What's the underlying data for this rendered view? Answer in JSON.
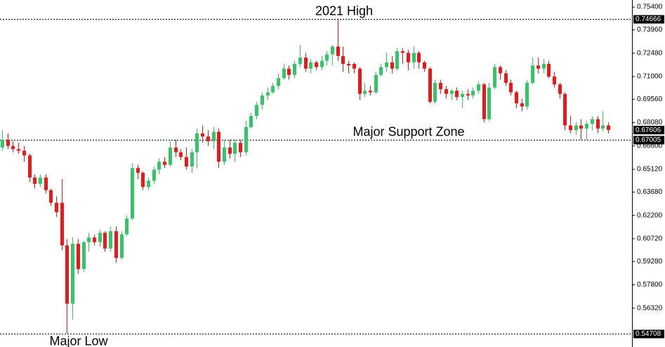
{
  "chart_data": {
    "type": "candlestick",
    "up_color": "#35c46a",
    "down_color": "#e8191a",
    "ylim": [
      0.5386,
      0.7585
    ],
    "yticks": [
      {
        "value": 0.754,
        "label": "0.75400"
      },
      {
        "value": 0.7396,
        "label": "0.73960"
      },
      {
        "value": 0.7248,
        "label": "0.72480"
      },
      {
        "value": 0.71,
        "label": "0.71000"
      },
      {
        "value": 0.6956,
        "label": "0.69560"
      },
      {
        "value": 0.6808,
        "label": "0.68080"
      },
      {
        "value": 0.666,
        "label": "0.66600"
      },
      {
        "value": 0.6512,
        "label": "0.65120"
      },
      {
        "value": 0.6368,
        "label": "0.63680"
      },
      {
        "value": 0.622,
        "label": "0.62200"
      },
      {
        "value": 0.6072,
        "label": "0.60720"
      },
      {
        "value": 0.5928,
        "label": "0.59280"
      },
      {
        "value": 0.578,
        "label": "0.57800"
      },
      {
        "value": 0.5632,
        "label": "0.56320"
      }
    ],
    "levels": [
      {
        "value": 0.74666,
        "label": "0.74666",
        "note": "2021 High"
      },
      {
        "value": 0.67005,
        "label": "0.67005",
        "note": "Major Support Zone"
      },
      {
        "value": 0.54708,
        "label": "0.54708",
        "note": "Major Low"
      }
    ],
    "current_price": {
      "value": 0.67606,
      "label": "0.67606"
    },
    "ohlc": [
      [
        0.665,
        0.676,
        0.663,
        0.67
      ],
      [
        0.67,
        0.674,
        0.664,
        0.666
      ],
      [
        0.666,
        0.669,
        0.662,
        0.664
      ],
      [
        0.664,
        0.668,
        0.661,
        0.663
      ],
      [
        0.663,
        0.666,
        0.656,
        0.66
      ],
      [
        0.66,
        0.661,
        0.643,
        0.646
      ],
      [
        0.646,
        0.648,
        0.639,
        0.642
      ],
      [
        0.642,
        0.648,
        0.64,
        0.646
      ],
      [
        0.646,
        0.648,
        0.636,
        0.638
      ],
      [
        0.638,
        0.639,
        0.628,
        0.63
      ],
      [
        0.63,
        0.634,
        0.621,
        0.624
      ],
      [
        0.63,
        0.645,
        0.6,
        0.603
      ],
      [
        0.603,
        0.607,
        0.5471,
        0.566
      ],
      [
        0.566,
        0.608,
        0.556,
        0.604
      ],
      [
        0.604,
        0.607,
        0.585,
        0.588
      ],
      [
        0.588,
        0.606,
        0.586,
        0.605
      ],
      [
        0.605,
        0.611,
        0.599,
        0.608
      ],
      [
        0.608,
        0.61,
        0.603,
        0.605
      ],
      [
        0.605,
        0.613,
        0.602,
        0.611
      ],
      [
        0.611,
        0.612,
        0.599,
        0.601
      ],
      [
        0.601,
        0.615,
        0.599,
        0.612
      ],
      [
        0.612,
        0.615,
        0.592,
        0.595
      ],
      [
        0.595,
        0.612,
        0.594,
        0.61
      ],
      [
        0.61,
        0.622,
        0.609,
        0.62
      ],
      [
        0.62,
        0.655,
        0.619,
        0.652
      ],
      [
        0.652,
        0.654,
        0.645,
        0.649
      ],
      [
        0.649,
        0.65,
        0.638,
        0.64
      ],
      [
        0.64,
        0.646,
        0.638,
        0.644
      ],
      [
        0.644,
        0.653,
        0.642,
        0.651
      ],
      [
        0.651,
        0.658,
        0.648,
        0.656
      ],
      [
        0.656,
        0.659,
        0.652,
        0.654
      ],
      [
        0.654,
        0.669,
        0.653,
        0.665
      ],
      [
        0.665,
        0.67,
        0.659,
        0.662
      ],
      [
        0.662,
        0.664,
        0.657,
        0.659
      ],
      [
        0.659,
        0.665,
        0.651,
        0.653
      ],
      [
        0.653,
        0.664,
        0.649,
        0.662
      ],
      [
        0.662,
        0.677,
        0.652,
        0.674
      ],
      [
        0.674,
        0.679,
        0.668,
        0.672
      ],
      [
        0.672,
        0.676,
        0.666,
        0.669
      ],
      [
        0.669,
        0.678,
        0.664,
        0.675
      ],
      [
        0.675,
        0.677,
        0.652,
        0.656
      ],
      [
        0.656,
        0.67,
        0.654,
        0.665
      ],
      [
        0.665,
        0.67,
        0.658,
        0.661
      ],
      [
        0.661,
        0.67,
        0.656,
        0.668
      ],
      [
        0.668,
        0.67,
        0.659,
        0.662
      ],
      [
        0.662,
        0.682,
        0.66,
        0.678
      ],
      [
        0.678,
        0.687,
        0.677,
        0.685
      ],
      [
        0.685,
        0.694,
        0.683,
        0.692
      ],
      [
        0.692,
        0.7,
        0.689,
        0.698
      ],
      [
        0.698,
        0.703,
        0.695,
        0.7
      ],
      [
        0.7,
        0.706,
        0.699,
        0.704
      ],
      [
        0.704,
        0.712,
        0.702,
        0.709
      ],
      [
        0.709,
        0.718,
        0.708,
        0.715
      ],
      [
        0.715,
        0.717,
        0.708,
        0.711
      ],
      [
        0.711,
        0.72,
        0.709,
        0.718
      ],
      [
        0.718,
        0.73,
        0.716,
        0.722
      ],
      [
        0.722,
        0.725,
        0.713,
        0.715
      ],
      [
        0.715,
        0.721,
        0.712,
        0.719
      ],
      [
        0.719,
        0.72,
        0.714,
        0.716
      ],
      [
        0.716,
        0.723,
        0.714,
        0.72
      ],
      [
        0.72,
        0.726,
        0.717,
        0.724
      ],
      [
        0.724,
        0.73,
        0.717,
        0.729
      ],
      [
        0.729,
        0.7467,
        0.72,
        0.723
      ],
      [
        0.723,
        0.729,
        0.713,
        0.718
      ],
      [
        0.718,
        0.72,
        0.712,
        0.717
      ],
      [
        0.718,
        0.719,
        0.712,
        0.715
      ],
      [
        0.715,
        0.716,
        0.695,
        0.699
      ],
      [
        0.699,
        0.706,
        0.697,
        0.701
      ],
      [
        0.701,
        0.704,
        0.698,
        0.7
      ],
      [
        0.7,
        0.713,
        0.699,
        0.711
      ],
      [
        0.711,
        0.718,
        0.71,
        0.716
      ],
      [
        0.716,
        0.725,
        0.713,
        0.719
      ],
      [
        0.719,
        0.723,
        0.712,
        0.715
      ],
      [
        0.715,
        0.728,
        0.714,
        0.726
      ],
      [
        0.726,
        0.728,
        0.718,
        0.725
      ],
      [
        0.725,
        0.727,
        0.714,
        0.719
      ],
      [
        0.719,
        0.729,
        0.715,
        0.725
      ],
      [
        0.725,
        0.726,
        0.715,
        0.719
      ],
      [
        0.719,
        0.72,
        0.713,
        0.715
      ],
      [
        0.715,
        0.716,
        0.693,
        0.694
      ],
      [
        0.694,
        0.708,
        0.693,
        0.706
      ],
      [
        0.706,
        0.708,
        0.699,
        0.702
      ],
      [
        0.702,
        0.704,
        0.696,
        0.699
      ],
      [
        0.699,
        0.702,
        0.695,
        0.701
      ],
      [
        0.701,
        0.703,
        0.695,
        0.697
      ],
      [
        0.697,
        0.701,
        0.69,
        0.699
      ],
      [
        0.699,
        0.702,
        0.695,
        0.698
      ],
      [
        0.698,
        0.703,
        0.696,
        0.701
      ],
      [
        0.701,
        0.707,
        0.699,
        0.705
      ],
      [
        0.705,
        0.706,
        0.681,
        0.683
      ],
      [
        0.683,
        0.706,
        0.682,
        0.703
      ],
      [
        0.703,
        0.718,
        0.702,
        0.716
      ],
      [
        0.716,
        0.717,
        0.708,
        0.712
      ],
      [
        0.712,
        0.714,
        0.704,
        0.706
      ],
      [
        0.706,
        0.708,
        0.698,
        0.7
      ],
      [
        0.7,
        0.701,
        0.69,
        0.693
      ],
      [
        0.693,
        0.696,
        0.688,
        0.691
      ],
      [
        0.691,
        0.708,
        0.689,
        0.706
      ],
      [
        0.706,
        0.722,
        0.705,
        0.717
      ],
      [
        0.717,
        0.722,
        0.712,
        0.715
      ],
      [
        0.715,
        0.721,
        0.712,
        0.718
      ],
      [
        0.718,
        0.72,
        0.709,
        0.71
      ],
      [
        0.71,
        0.713,
        0.703,
        0.705
      ],
      [
        0.705,
        0.706,
        0.696,
        0.699
      ],
      [
        0.699,
        0.7,
        0.676,
        0.679
      ],
      [
        0.679,
        0.685,
        0.674,
        0.676
      ],
      [
        0.676,
        0.681,
        0.673,
        0.679
      ],
      [
        0.679,
        0.683,
        0.67,
        0.677
      ],
      [
        0.677,
        0.682,
        0.67,
        0.68
      ],
      [
        0.68,
        0.685,
        0.676,
        0.683
      ],
      [
        0.683,
        0.685,
        0.674,
        0.677
      ],
      [
        0.677,
        0.688,
        0.675,
        0.679
      ],
      [
        0.679,
        0.681,
        0.674,
        0.6761
      ]
    ]
  }
}
